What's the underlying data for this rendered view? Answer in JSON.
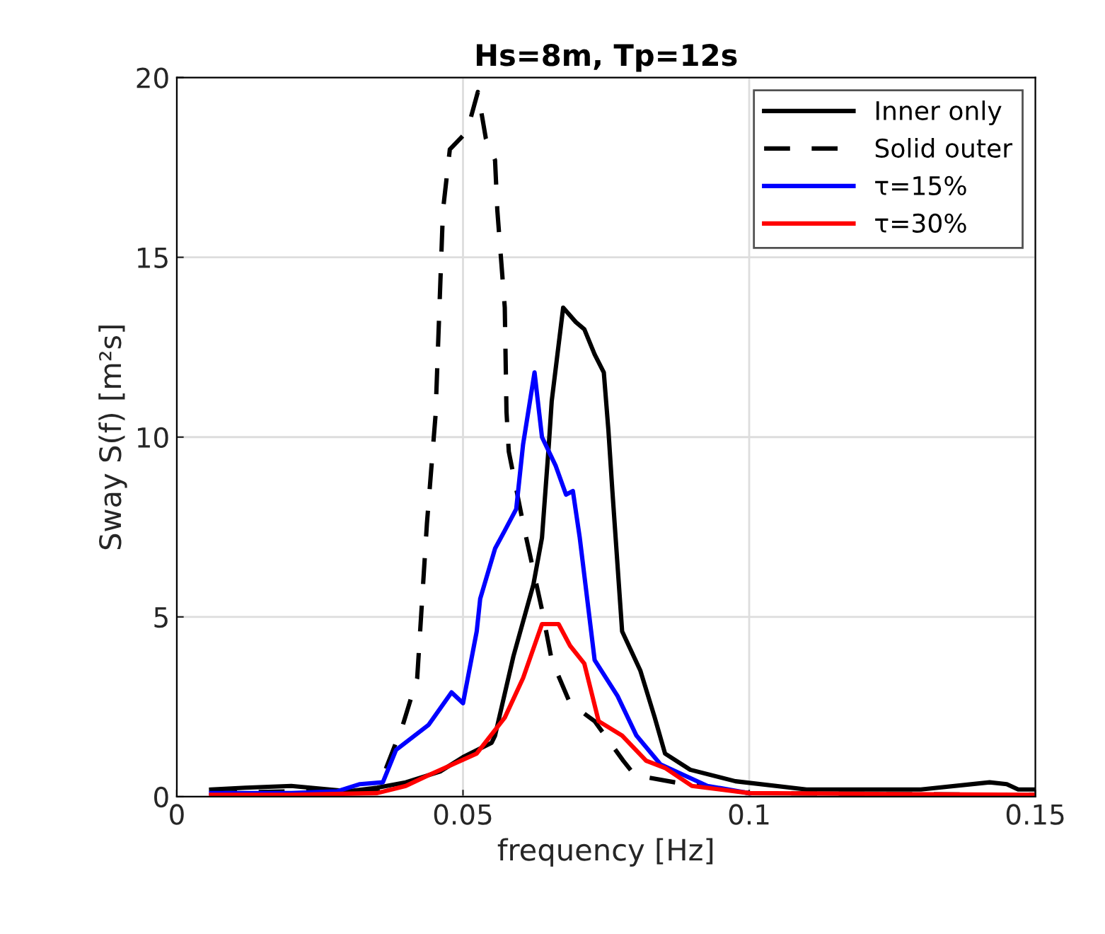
{
  "chart_data": {
    "type": "line",
    "title": "Hs=8m, Tp=12s",
    "xlabel": "frequency [Hz]",
    "ylabel": "Sway S(f) [m²s]",
    "xlim": [
      0,
      0.15
    ],
    "ylim": [
      0,
      20
    ],
    "xticks": [
      0,
      0.05,
      0.1,
      0.15
    ],
    "yticks": [
      0,
      5,
      10,
      15,
      20
    ],
    "grid": true,
    "legend": "top right",
    "marker": "none",
    "series": [
      {
        "name": "Inner only",
        "color": "#000000",
        "line_style": "solid",
        "x": [
          0.006,
          0.012,
          0.02,
          0.03,
          0.035,
          0.04,
          0.046,
          0.05,
          0.055,
          0.0556,
          0.0588,
          0.0623,
          0.0638,
          0.065,
          0.0655,
          0.0675,
          0.0697,
          0.0712,
          0.073,
          0.0746,
          0.0754,
          0.0761,
          0.0778,
          0.081,
          0.0835,
          0.0853,
          0.0897,
          0.0976,
          0.11,
          0.13,
          0.142,
          0.145,
          0.147,
          0.15
        ],
        "values": [
          0.2,
          0.25,
          0.3,
          0.15,
          0.25,
          0.4,
          0.7,
          1.1,
          1.5,
          1.7,
          3.9,
          5.9,
          7.2,
          9.8,
          11,
          13.6,
          13.2,
          13,
          12.3,
          11.8,
          10.2,
          8.5,
          4.6,
          3.5,
          2.2,
          1.2,
          0.75,
          0.43,
          0.2,
          0.2,
          0.4,
          0.35,
          0.2,
          0.2
        ]
      },
      {
        "name": "Solid outer",
        "color": "#000000",
        "line_style": "dashed",
        "x": [
          0.006,
          0.02,
          0.035,
          0.0395,
          0.042,
          0.0437,
          0.0452,
          0.0465,
          0.0477,
          0.0507,
          0.0526,
          0.054,
          0.0556,
          0.056,
          0.0573,
          0.0576,
          0.058,
          0.0605,
          0.0638,
          0.0655,
          0.0687,
          0.073,
          0.078,
          0.08,
          0.087,
          0.1,
          0.15
        ],
        "values": [
          0.1,
          0.15,
          0.15,
          2,
          3.3,
          7.6,
          10.6,
          16.3,
          18,
          18.5,
          19.6,
          18.3,
          17.7,
          16.3,
          13.6,
          10.7,
          9.6,
          7.6,
          5.2,
          3.8,
          2.6,
          2.1,
          1.0,
          0.6,
          0.4,
          0.1,
          0.05
        ]
      },
      {
        "name": "τ=15%",
        "color": "#0000ff",
        "line_style": "solid",
        "x": [
          0.006,
          0.02,
          0.028,
          0.032,
          0.036,
          0.0383,
          0.044,
          0.048,
          0.05,
          0.0524,
          0.053,
          0.0556,
          0.0573,
          0.0593,
          0.0605,
          0.0625,
          0.0638,
          0.0662,
          0.068,
          0.0692,
          0.0704,
          0.073,
          0.077,
          0.0803,
          0.0845,
          0.0927,
          0.1
        ],
        "values": [
          0.1,
          0.1,
          0.15,
          0.35,
          0.4,
          1.3,
          2,
          2.9,
          2.6,
          4.6,
          5.5,
          6.9,
          7.4,
          8,
          9.8,
          11.8,
          10,
          9.2,
          8.4,
          8.5,
          7.2,
          3.8,
          2.8,
          1.7,
          0.9,
          0.3,
          0.1
        ]
      },
      {
        "name": "τ=30%",
        "color": "#ff0000",
        "line_style": "solid",
        "x": [
          0.006,
          0.02,
          0.035,
          0.04,
          0.044,
          0.0524,
          0.0573,
          0.0605,
          0.0638,
          0.0667,
          0.0687,
          0.0712,
          0.0737,
          0.0778,
          0.082,
          0.0853,
          0.09,
          0.1,
          0.15
        ],
        "values": [
          0.05,
          0.05,
          0.1,
          0.3,
          0.6,
          1.2,
          2.2,
          3.3,
          4.8,
          4.8,
          4.2,
          3.7,
          2.1,
          1.7,
          1.0,
          0.8,
          0.3,
          0.1,
          0.05
        ]
      }
    ]
  }
}
